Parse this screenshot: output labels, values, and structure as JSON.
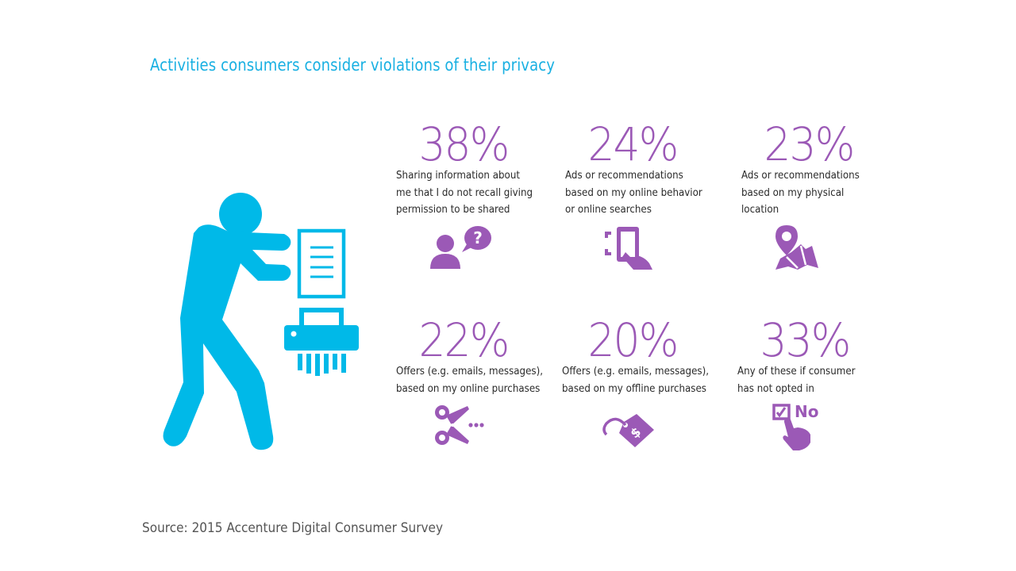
{
  "title": "Activities consumers consider violations of their privacy",
  "colors": {
    "accent_blue": "#00b9e8",
    "accent_purple": "#9b59b6",
    "text": "#2a2a2a"
  },
  "hero_icon": "person-shredding-document-icon",
  "stats": [
    {
      "value": "38%",
      "lines": [
        "Sharing information about",
        "me that I do not recall giving",
        "permission to be shared"
      ],
      "icon": "person-question-icon"
    },
    {
      "value": "24%",
      "lines": [
        "Ads or recommendations",
        "based on my online behavior",
        "or online searches"
      ],
      "icon": "phone-tap-icon"
    },
    {
      "value": "23%",
      "lines": [
        "Ads or recommendations",
        "based on my physical",
        "location"
      ],
      "icon": "map-pin-icon"
    },
    {
      "value": "22%",
      "lines": [
        "Offers (e.g. emails, messages),",
        "based on my online purchases"
      ],
      "icon": "scissors-coupon-icon"
    },
    {
      "value": "20%",
      "lines": [
        "Offers (e.g. emails, messages),",
        "based on my offline purchases"
      ],
      "icon": "price-tag-icon"
    },
    {
      "value": "33%",
      "lines": [
        "Any of these if consumer",
        "has not opted in"
      ],
      "icon": "checkbox-no-icon",
      "icon_label": "No"
    }
  ],
  "source": "Source: 2015 Accenture Digital Consumer Survey"
}
